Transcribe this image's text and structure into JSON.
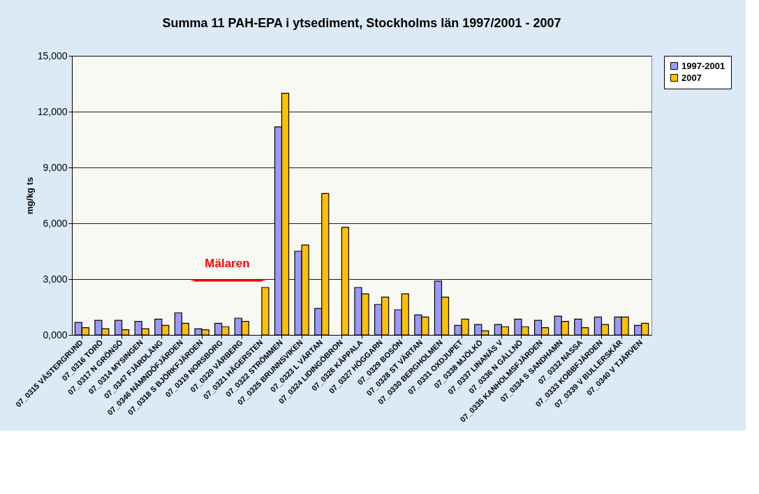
{
  "chart_data": {
    "type": "bar",
    "title": "Summa 11 PAH-EPA i ytsediment,  Stockholms län 1997/2001 - 2007",
    "ylabel": "mg/kg ts",
    "categories": [
      "07_0315 VÄSTERGRUND",
      "07_0316 TORÖ",
      "07_0317 N GRÖNSÖ",
      "07_0314 MYSINGEN",
      "07_0347 FJÄRDLÄNG",
      "07_0346 NÄMNDÖFJÄRDEN",
      "07_0318 S BJÖRKFJÄRDEN",
      "07_0319 NORSBORG",
      "07_0320 VÅRBERG",
      "07_0321 HÄGERSTEN",
      "07_0322 STRÖMMEN",
      "07_0325 BRUNNSVIKEN",
      "07_0323 L VÄRTAN",
      "07_0324 LIDINGÖBRON",
      "07_0326 KÄPPALA",
      "07_0327 HÖGGARN",
      "07_0329 BOSÖN",
      "07_0328 ST VÄRTAN",
      "07_0330 BERGHOLMEN",
      "07_0331 OXDJUPET",
      "07_0338 MJÖLKÖ",
      "07_0337 LINANÄS V",
      "07_0336 N GÄLLNÖ",
      "07_0335 KANHOLMSFJÄRDEN",
      "07_0334 S SANDHAMN",
      "07_0332 NASSA",
      "07_0333 KOBBFJÄRDEN",
      "07_0339 V BULLERSKÄR",
      "07_0340 V TJÄRVEN"
    ],
    "series": [
      {
        "name": "1997-2001",
        "color": "#9999ff",
        "values": [
          670,
          780,
          780,
          730,
          850,
          1190,
          330,
          620,
          900,
          null,
          11180,
          4500,
          1420,
          null,
          2550,
          1640,
          1350,
          1070,
          2890,
          510,
          560,
          560,
          850,
          780,
          1010,
          850,
          960,
          960,
          510
        ]
      },
      {
        "name": "2007",
        "color": "#ffc000",
        "values": [
          390,
          330,
          280,
          330,
          510,
          620,
          280,
          440,
          730,
          2550,
          12990,
          4830,
          7600,
          5780,
          2210,
          2030,
          2210,
          960,
          2030,
          850,
          220,
          440,
          440,
          390,
          730,
          390,
          560,
          960,
          620
        ]
      }
    ],
    "ylim": [
      0,
      15000
    ],
    "yticks": [
      {
        "value": 0,
        "label": "0,000"
      },
      {
        "value": 3000,
        "label": "3,000"
      },
      {
        "value": 6000,
        "label": "6,000"
      },
      {
        "value": 9000,
        "label": "9,000"
      },
      {
        "value": 12000,
        "label": "12,000"
      },
      {
        "value": 15000,
        "label": "15,000"
      }
    ],
    "grid": "y",
    "legend": "right",
    "annotations": [
      "Mälaren"
    ]
  }
}
